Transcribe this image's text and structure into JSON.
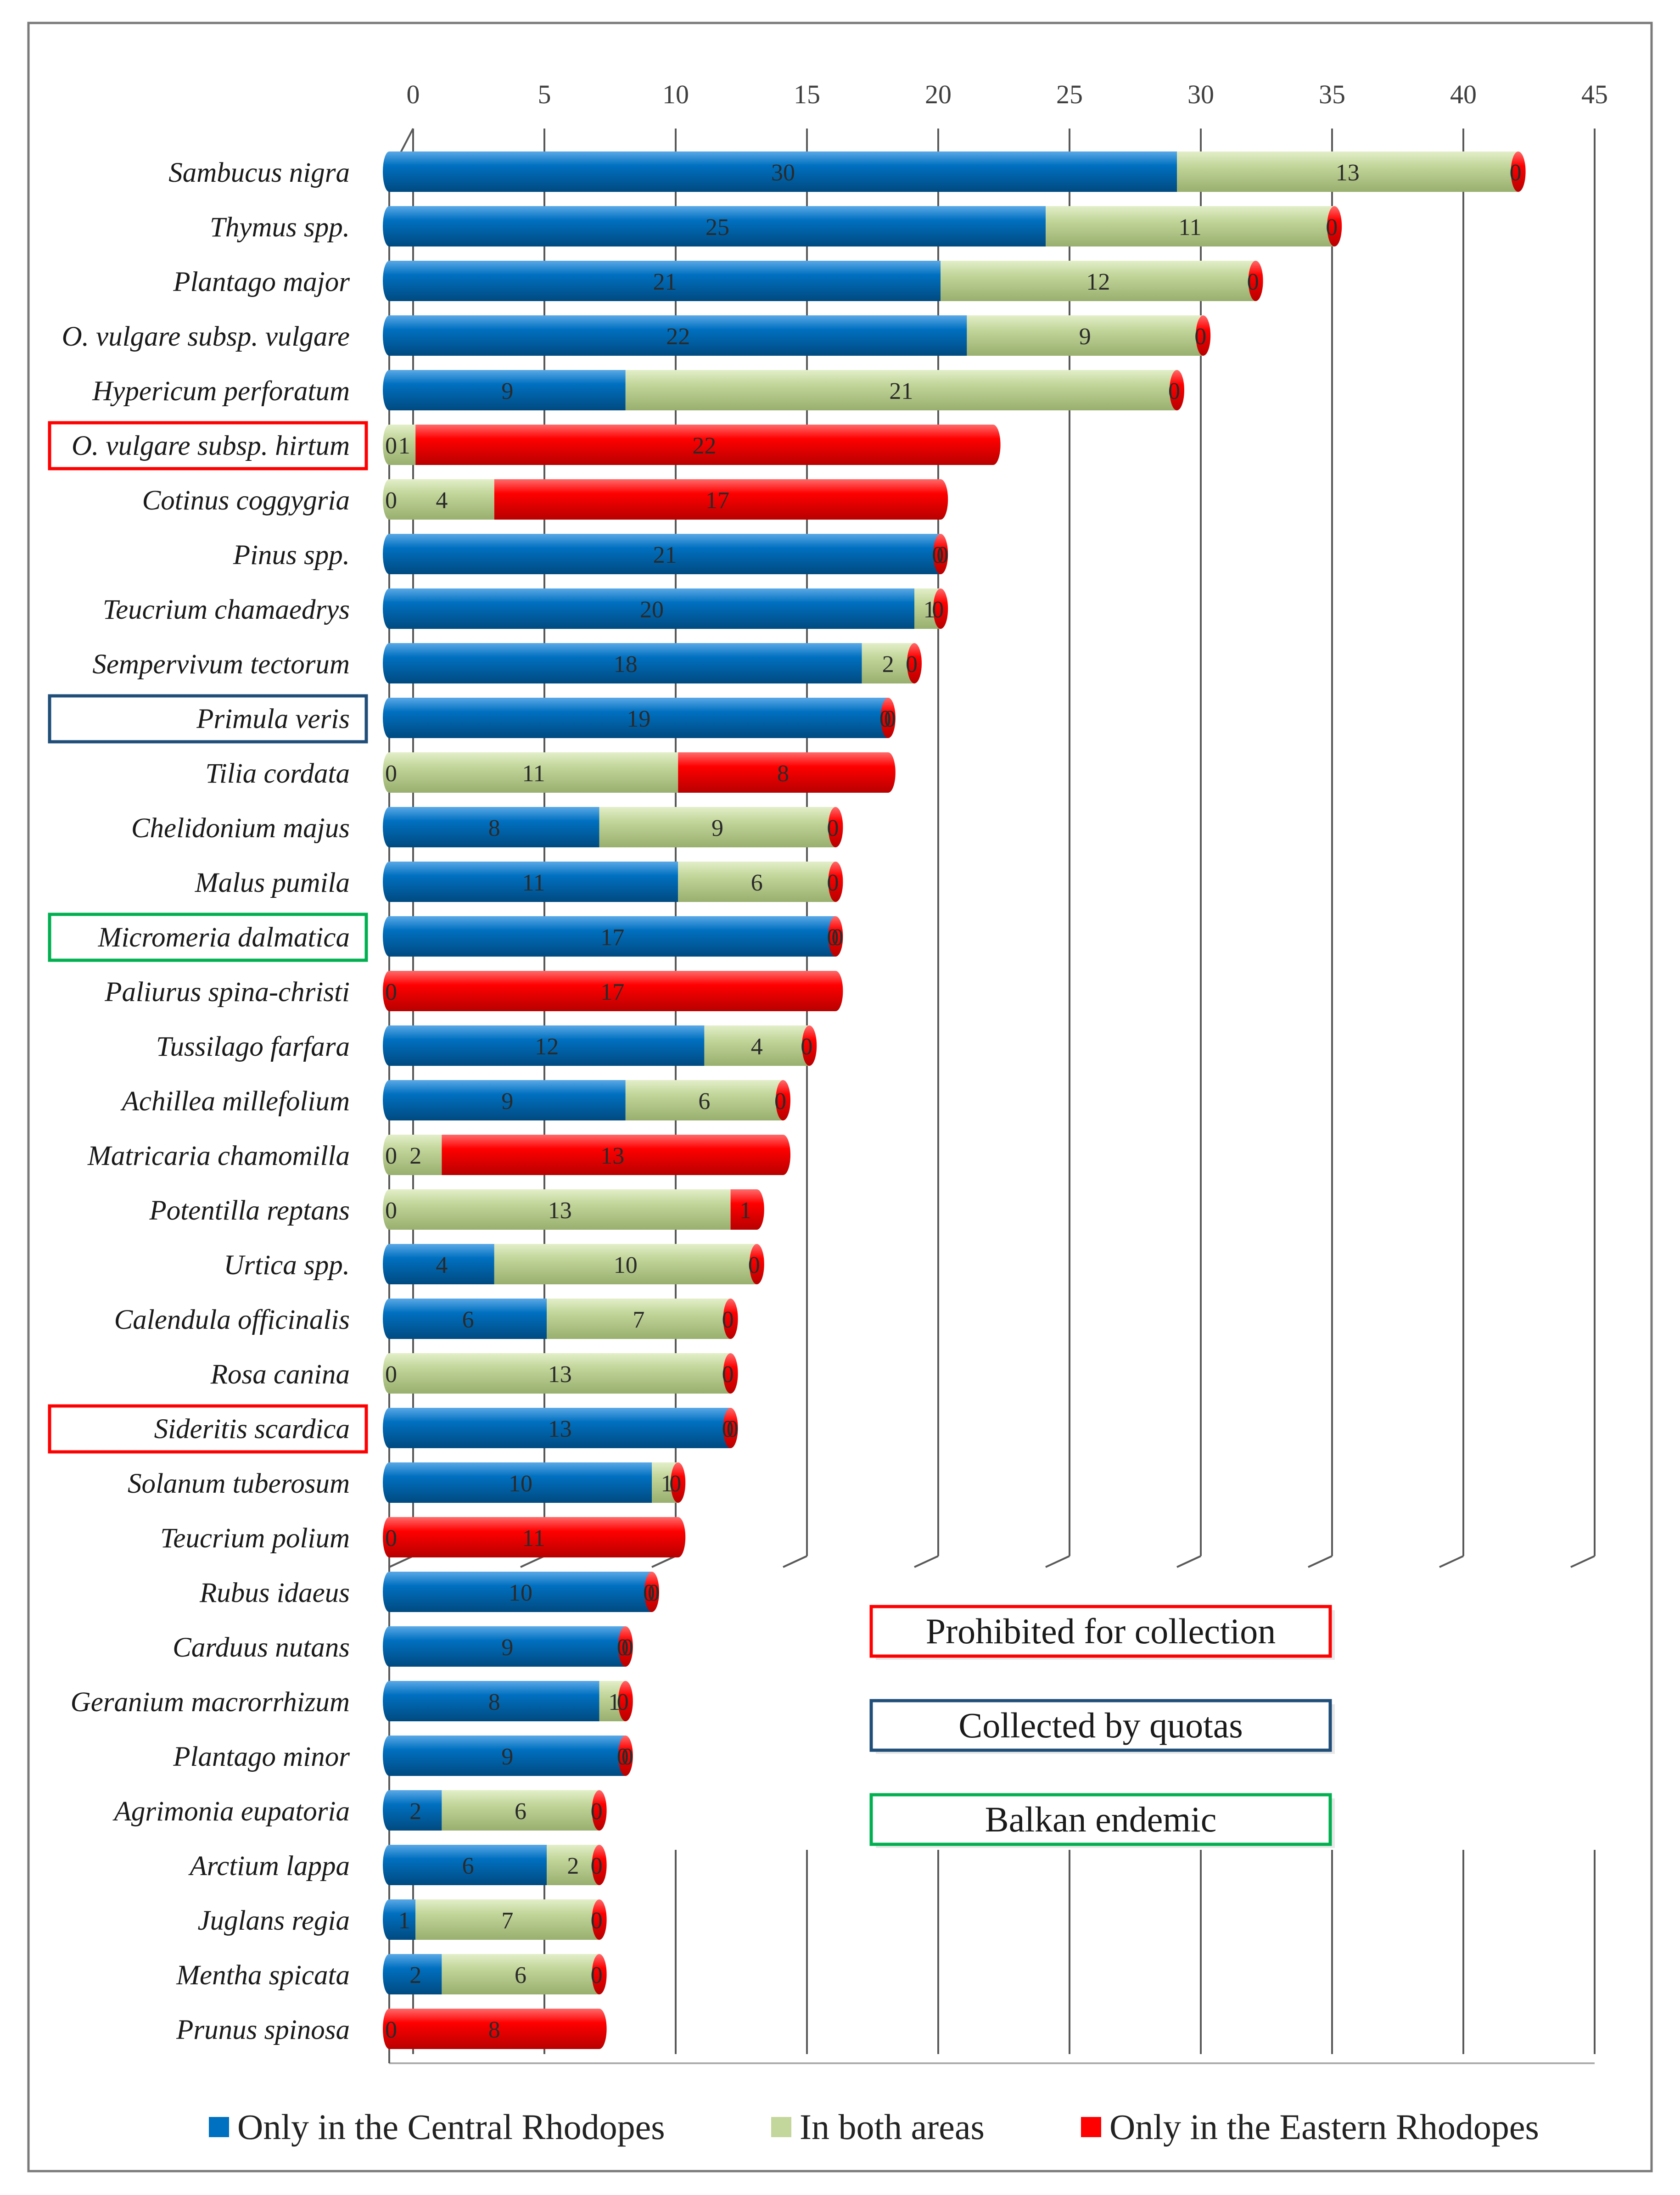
{
  "chart_data": {
    "type": "bar",
    "orientation": "horizontal",
    "stacked": true,
    "xlim": [
      0,
      45
    ],
    "x_ticks": [
      "0",
      "5",
      "10",
      "15",
      "20",
      "25",
      "30",
      "35",
      "40",
      "45"
    ],
    "grid": true,
    "legend_position": "bottom",
    "categories": [
      "Sambucus nigra",
      "Thymus spp.",
      "Plantago major",
      "O. vulgare subsp. vulgare",
      "Hypericum perforatum",
      "O. vulgare subsp. hirtum",
      "Cotinus coggygria",
      "Pinus spp.",
      "Teucrium chamaedrys",
      "Sempervivum tectorum",
      "Primula veris",
      "Tilia cordata",
      "Chelidonium majus",
      "Malus pumila",
      "Micromeria dalmatica",
      "Paliurus spina-christi",
      "Tussilago farfara",
      "Achillea millefolium",
      "Matricaria chamomilla",
      "Potentilla reptans",
      "Urtica spp.",
      "Calendula officinalis",
      "Rosa canina",
      "Sideritis scardica",
      "Solanum tuberosum",
      "Teucrium polium",
      "Rubus idaeus",
      "Carduus nutans",
      "Geranium macrorrhizum",
      "Plantago minor",
      "Agrimonia eupatoria",
      "Arctium lappa",
      "Juglans regia",
      "Mentha spicata",
      "Prunus spinosa"
    ],
    "series": [
      {
        "name": "Only in the Central Rhodopes",
        "color": "#0070c0",
        "values": [
          30,
          25,
          21,
          22,
          9,
          0,
          0,
          21,
          20,
          18,
          19,
          0,
          8,
          11,
          17,
          0,
          12,
          9,
          0,
          0,
          4,
          6,
          0,
          13,
          10,
          0,
          10,
          9,
          8,
          9,
          2,
          6,
          1,
          2,
          0
        ]
      },
      {
        "name": "In both areas",
        "color": "#c3d69b",
        "values": [
          13,
          11,
          12,
          9,
          21,
          1,
          4,
          0,
          1,
          2,
          0,
          11,
          9,
          6,
          0,
          0,
          4,
          6,
          2,
          13,
          10,
          7,
          13,
          0,
          1,
          0,
          0,
          0,
          1,
          0,
          6,
          2,
          7,
          6,
          0
        ]
      },
      {
        "name": "Only in the Eastern Rhodopes",
        "color": "#ff0000",
        "values": [
          0,
          0,
          0,
          0,
          0,
          22,
          17,
          0,
          0,
          0,
          0,
          8,
          0,
          0,
          0,
          17,
          0,
          0,
          13,
          1,
          0,
          0,
          0,
          0,
          0,
          11,
          0,
          0,
          0,
          0,
          0,
          0,
          0,
          0,
          8
        ]
      }
    ],
    "highlighted_categories": [
      {
        "category": "O. vulgare subsp. hirtum",
        "group": "Prohibited for collection",
        "color": "#ff0000"
      },
      {
        "category": "Primula veris",
        "group": "Collected by quotas",
        "color": "#1f4e79"
      },
      {
        "category": "Micromeria dalmatica",
        "group": "Balkan endemic",
        "color": "#00b050"
      },
      {
        "category": "Sideritis scardica",
        "group": "Prohibited for collection",
        "color": "#ff0000"
      }
    ],
    "notes": [
      {
        "text": "Prohibited for collection",
        "color": "#ff0000"
      },
      {
        "text": "Collected by quotas",
        "color": "#1f4e79"
      },
      {
        "text": "Balkan endemic",
        "color": "#00b050"
      }
    ]
  }
}
